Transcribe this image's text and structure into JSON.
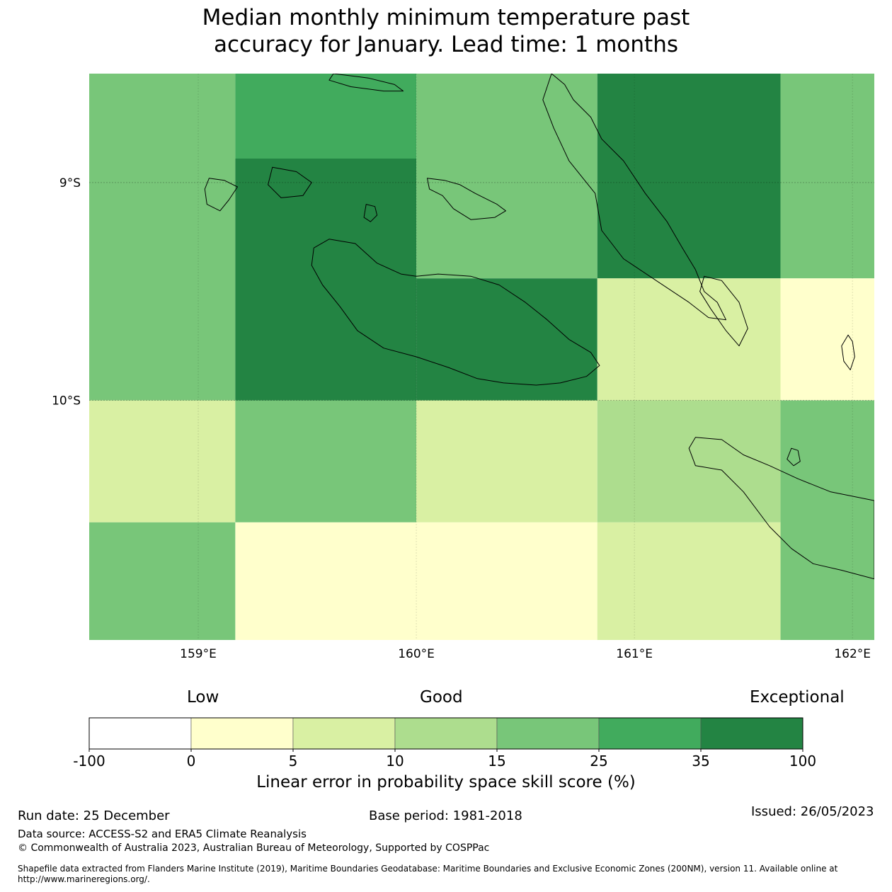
{
  "title": {
    "line1": "Median monthly minimum temperature past",
    "line2": "accuracy for January. Lead time: 1 months"
  },
  "map": {
    "lon_range": [
      158.5,
      162.1
    ],
    "lat_range": [
      -8.5,
      -11.1
    ],
    "lon_ticks": [
      {
        "value": 159,
        "label": "159°E"
      },
      {
        "value": 160,
        "label": "160°E"
      },
      {
        "value": 161,
        "label": "161°E"
      },
      {
        "value": 162,
        "label": "162°E"
      }
    ],
    "lat_ticks": [
      {
        "value": -9,
        "label": "9°S"
      },
      {
        "value": -10,
        "label": "10°S"
      }
    ],
    "grid_cells": [
      {
        "lon0": 158.5,
        "lon1": 159.17,
        "lat0": -8.5,
        "lat1": -10.0,
        "category": 4
      },
      {
        "lon0": 159.17,
        "lon1": 160.0,
        "lat0": -8.5,
        "lat1": -8.89,
        "category": 5
      },
      {
        "lon0": 159.17,
        "lon1": 160.0,
        "lat0": -8.89,
        "lat1": -10.0,
        "category": 6
      },
      {
        "lon0": 160.0,
        "lon1": 160.83,
        "lat0": -8.5,
        "lat1": -9.44,
        "category": 4
      },
      {
        "lon0": 160.0,
        "lon1": 160.83,
        "lat0": -9.44,
        "lat1": -10.0,
        "category": 6
      },
      {
        "lon0": 160.83,
        "lon1": 161.67,
        "lat0": -8.5,
        "lat1": -9.44,
        "category": 6
      },
      {
        "lon0": 160.83,
        "lon1": 161.67,
        "lat0": -9.44,
        "lat1": -10.0,
        "category": 2
      },
      {
        "lon0": 161.67,
        "lon1": 162.1,
        "lat0": -8.5,
        "lat1": -9.44,
        "category": 4
      },
      {
        "lon0": 161.67,
        "lon1": 162.1,
        "lat0": -9.44,
        "lat1": -10.0,
        "category": 1
      },
      {
        "lon0": 158.5,
        "lon1": 159.17,
        "lat0": -10.0,
        "lat1": -10.56,
        "category": 2
      },
      {
        "lon0": 159.17,
        "lon1": 160.0,
        "lat0": -10.0,
        "lat1": -10.56,
        "category": 4
      },
      {
        "lon0": 160.0,
        "lon1": 160.83,
        "lat0": -10.0,
        "lat1": -10.56,
        "category": 2
      },
      {
        "lon0": 160.83,
        "lon1": 161.67,
        "lat0": -10.0,
        "lat1": -10.56,
        "category": 3
      },
      {
        "lon0": 161.67,
        "lon1": 162.1,
        "lat0": -10.0,
        "lat1": -11.1,
        "category": 4
      },
      {
        "lon0": 158.5,
        "lon1": 159.17,
        "lat0": -10.56,
        "lat1": -11.1,
        "category": 4
      },
      {
        "lon0": 159.17,
        "lon1": 160.83,
        "lat0": -10.56,
        "lat1": -11.1,
        "category": 1
      },
      {
        "lon0": 160.83,
        "lon1": 161.67,
        "lat0": -10.56,
        "lat1": -11.1,
        "category": 2
      }
    ],
    "islands": [
      {
        "name": "Guadalcanal",
        "points": [
          [
            159.6,
            -9.26
          ],
          [
            159.72,
            -9.28
          ],
          [
            159.82,
            -9.37
          ],
          [
            159.93,
            -9.42
          ],
          [
            160.0,
            -9.43
          ],
          [
            160.1,
            -9.42
          ],
          [
            160.25,
            -9.43
          ],
          [
            160.38,
            -9.47
          ],
          [
            160.5,
            -9.55
          ],
          [
            160.6,
            -9.63
          ],
          [
            160.7,
            -9.72
          ],
          [
            160.8,
            -9.78
          ],
          [
            160.84,
            -9.84
          ],
          [
            160.78,
            -9.89
          ],
          [
            160.66,
            -9.92
          ],
          [
            160.55,
            -9.93
          ],
          [
            160.4,
            -9.92
          ],
          [
            160.28,
            -9.9
          ],
          [
            160.15,
            -9.85
          ],
          [
            160.0,
            -9.8
          ],
          [
            159.85,
            -9.76
          ],
          [
            159.73,
            -9.68
          ],
          [
            159.65,
            -9.57
          ],
          [
            159.57,
            -9.47
          ],
          [
            159.52,
            -9.38
          ],
          [
            159.53,
            -9.3
          ]
        ]
      },
      {
        "name": "Savo",
        "points": [
          [
            159.77,
            -9.1
          ],
          [
            159.81,
            -9.11
          ],
          [
            159.82,
            -9.15
          ],
          [
            159.79,
            -9.18
          ],
          [
            159.76,
            -9.16
          ]
        ]
      },
      {
        "name": "Florida Islands",
        "points": [
          [
            160.05,
            -8.98
          ],
          [
            160.13,
            -8.99
          ],
          [
            160.2,
            -9.01
          ],
          [
            160.27,
            -9.05
          ],
          [
            160.37,
            -9.1
          ],
          [
            160.41,
            -9.13
          ],
          [
            160.36,
            -9.16
          ],
          [
            160.25,
            -9.17
          ],
          [
            160.17,
            -9.12
          ],
          [
            160.12,
            -9.06
          ],
          [
            160.06,
            -9.03
          ]
        ]
      },
      {
        "name": "Russell Islands",
        "points": [
          [
            159.05,
            -8.98
          ],
          [
            159.12,
            -8.99
          ],
          [
            159.18,
            -9.02
          ],
          [
            159.14,
            -9.08
          ],
          [
            159.1,
            -9.13
          ],
          [
            159.04,
            -9.1
          ],
          [
            159.03,
            -9.03
          ]
        ]
      },
      {
        "name": "Malaita",
        "points": [
          [
            160.62,
            -8.5
          ],
          [
            160.68,
            -8.55
          ],
          [
            160.72,
            -8.62
          ],
          [
            160.8,
            -8.7
          ],
          [
            160.85,
            -8.8
          ],
          [
            160.95,
            -8.9
          ],
          [
            161.05,
            -9.05
          ],
          [
            161.15,
            -9.18
          ],
          [
            161.22,
            -9.3
          ],
          [
            161.28,
            -9.4
          ],
          [
            161.32,
            -9.5
          ],
          [
            161.38,
            -9.55
          ],
          [
            161.42,
            -9.63
          ],
          [
            161.34,
            -9.62
          ],
          [
            161.25,
            -9.55
          ],
          [
            161.1,
            -9.45
          ],
          [
            160.95,
            -9.35
          ],
          [
            160.85,
            -9.22
          ],
          [
            160.82,
            -9.05
          ],
          [
            160.7,
            -8.9
          ],
          [
            160.63,
            -8.75
          ],
          [
            160.58,
            -8.62
          ]
        ]
      },
      {
        "name": "Small Malaita",
        "points": [
          [
            161.32,
            -9.43
          ],
          [
            161.4,
            -9.45
          ],
          [
            161.48,
            -9.55
          ],
          [
            161.52,
            -9.67
          ],
          [
            161.48,
            -9.75
          ],
          [
            161.42,
            -9.68
          ],
          [
            161.35,
            -9.58
          ],
          [
            161.3,
            -9.5
          ]
        ]
      },
      {
        "name": "Ulawa",
        "points": [
          [
            161.98,
            -9.7
          ],
          [
            162.0,
            -9.73
          ],
          [
            162.01,
            -9.8
          ],
          [
            161.99,
            -9.86
          ],
          [
            161.96,
            -9.82
          ],
          [
            161.95,
            -9.75
          ]
        ]
      },
      {
        "name": "Makira",
        "points": [
          [
            161.28,
            -10.17
          ],
          [
            161.4,
            -10.18
          ],
          [
            161.5,
            -10.25
          ],
          [
            161.62,
            -10.3
          ],
          [
            161.75,
            -10.36
          ],
          [
            161.9,
            -10.42
          ],
          [
            162.1,
            -10.46
          ],
          [
            162.1,
            -10.82
          ],
          [
            161.95,
            -10.78
          ],
          [
            161.82,
            -10.75
          ],
          [
            161.72,
            -10.68
          ],
          [
            161.62,
            -10.58
          ],
          [
            161.5,
            -10.42
          ],
          [
            161.4,
            -10.32
          ],
          [
            161.28,
            -10.3
          ],
          [
            161.25,
            -10.22
          ]
        ]
      },
      {
        "name": "Ugi",
        "points": [
          [
            161.72,
            -10.22
          ],
          [
            161.75,
            -10.23
          ],
          [
            161.76,
            -10.28
          ],
          [
            161.73,
            -10.3
          ],
          [
            161.7,
            -10.27
          ]
        ]
      },
      {
        "name": "Ngella islets",
        "points": [
          [
            159.34,
            -8.93
          ],
          [
            159.45,
            -8.95
          ],
          [
            159.52,
            -9.0
          ],
          [
            159.48,
            -9.06
          ],
          [
            159.38,
            -9.07
          ],
          [
            159.32,
            -9.01
          ]
        ]
      },
      {
        "name": "New Georgia tip",
        "points": [
          [
            159.62,
            -8.5
          ],
          [
            159.78,
            -8.52
          ],
          [
            159.9,
            -8.55
          ],
          [
            159.94,
            -8.58
          ],
          [
            159.85,
            -8.58
          ],
          [
            159.7,
            -8.56
          ],
          [
            159.6,
            -8.53
          ]
        ]
      }
    ]
  },
  "legend": {
    "low_label": "Low",
    "good_label": "Good",
    "exceptional_label": "Exceptional",
    "colors": [
      "#ffffff",
      "#ffffcc",
      "#d9f0a3",
      "#addd8e",
      "#78c679",
      "#41ab5d",
      "#238443"
    ],
    "tick_labels": [
      "-100",
      "0",
      "5",
      "10",
      "15",
      "25",
      "35",
      "100"
    ],
    "axis_label": "Linear error in probability space skill score (%)"
  },
  "footer": {
    "run_date": "Run date: 25 December",
    "base_period": "Base period: 1981-2018",
    "issued": "Issued: 26/05/2023",
    "data_source": "Data source: ACCESS-S2 and ERA5 Climate Reanalysis",
    "copyright": "© Commonwealth of Australia 2023, Australian Bureau of Meteorology, Supported by COSPPac",
    "shapefile": "Shapefile data extracted from Flanders Marine Institute (2019), Maritime Boundaries Geodatabase: Maritime Boundaries and Exclusive Economic Zones (200NM), version 11. Available online at http://www.marineregions.org/."
  }
}
